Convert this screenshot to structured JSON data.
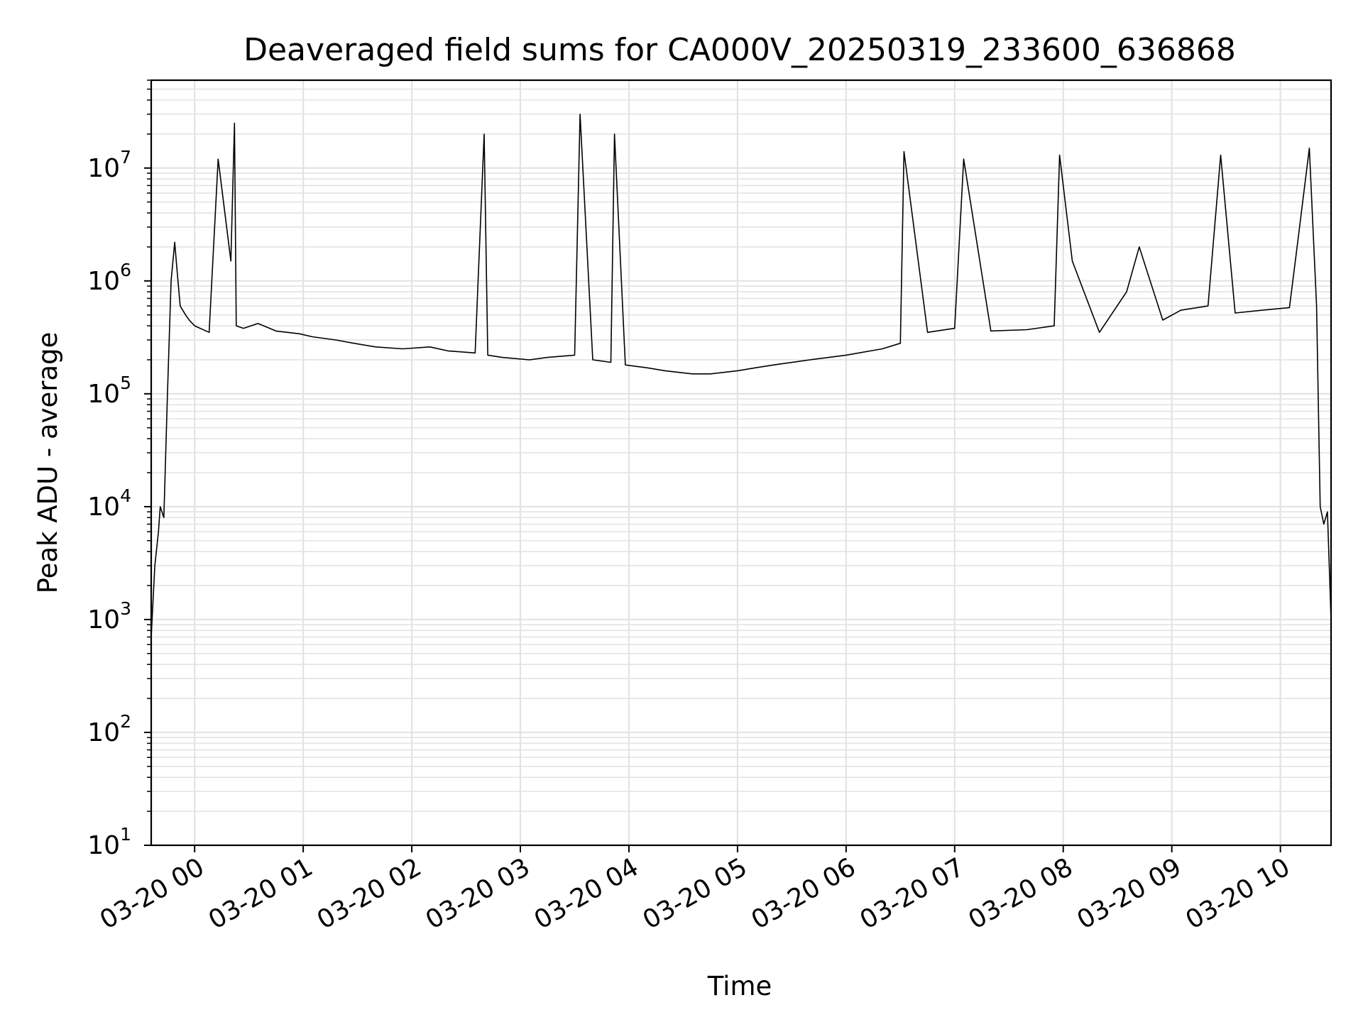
{
  "chart_data": {
    "type": "line",
    "title": "Deaveraged field sums for CA000V_20250319_233600_636868",
    "xlabel": "Time",
    "ylabel": "Peak ADU - average",
    "yscale": "log",
    "ylim": [
      10,
      60000000
    ],
    "xlim": [
      "2025-03-19 23:36",
      "2025-03-20 10:28"
    ],
    "grid": true,
    "x_tick_labels": [
      "03-20 00",
      "03-20 01",
      "03-20 02",
      "03-20 03",
      "03-20 04",
      "03-20 05",
      "03-20 06",
      "03-20 07",
      "03-20 08",
      "03-20 09",
      "03-20 10"
    ],
    "y_tick_labels": [
      {
        "base": "10",
        "exp": "1"
      },
      {
        "base": "10",
        "exp": "2"
      },
      {
        "base": "10",
        "exp": "3"
      },
      {
        "base": "10",
        "exp": "4"
      },
      {
        "base": "10",
        "exp": "5"
      },
      {
        "base": "10",
        "exp": "6"
      },
      {
        "base": "10",
        "exp": "7"
      }
    ],
    "line_color": "#000000",
    "series": [
      {
        "x": [
          "2025-03-19 23:36",
          "2025-03-19 23:38",
          "2025-03-19 23:40",
          "2025-03-19 23:41",
          "2025-03-19 23:43",
          "2025-03-19 23:45",
          "2025-03-19 23:47",
          "2025-03-19 23:49",
          "2025-03-19 23:50",
          "2025-03-19 23:52",
          "2025-03-19 23:55",
          "2025-03-19 23:57",
          "2025-03-20 00:00",
          "2025-03-20 00:08",
          "2025-03-20 00:13",
          "2025-03-20 00:20",
          "2025-03-20 00:22",
          "2025-03-20 00:23",
          "2025-03-20 00:27",
          "2025-03-20 00:35",
          "2025-03-20 00:45",
          "2025-03-20 00:58",
          "2025-03-20 01:05",
          "2025-03-20 01:18",
          "2025-03-20 01:28",
          "2025-03-20 01:40",
          "2025-03-20 01:55",
          "2025-03-20 02:10",
          "2025-03-20 02:20",
          "2025-03-20 02:35",
          "2025-03-20 02:40",
          "2025-03-20 02:42",
          "2025-03-20 02:50",
          "2025-03-20 03:05",
          "2025-03-20 03:15",
          "2025-03-20 03:30",
          "2025-03-20 03:33",
          "2025-03-20 03:40",
          "2025-03-20 03:50",
          "2025-03-20 03:52",
          "2025-03-20 03:58",
          "2025-03-20 04:10",
          "2025-03-20 04:20",
          "2025-03-20 04:35",
          "2025-03-20 04:45",
          "2025-03-20 05:00",
          "2025-03-20 05:10",
          "2025-03-20 05:20",
          "2025-03-20 05:40",
          "2025-03-20 06:00",
          "2025-03-20 06:20",
          "2025-03-20 06:30",
          "2025-03-20 06:32",
          "2025-03-20 06:45",
          "2025-03-20 07:00",
          "2025-03-20 07:05",
          "2025-03-20 07:20",
          "2025-03-20 07:40",
          "2025-03-20 07:55",
          "2025-03-20 07:58",
          "2025-03-20 08:05",
          "2025-03-20 08:20",
          "2025-03-20 08:35",
          "2025-03-20 08:42",
          "2025-03-20 08:55",
          "2025-03-20 09:05",
          "2025-03-20 09:20",
          "2025-03-20 09:27",
          "2025-03-20 09:35",
          "2025-03-20 09:50",
          "2025-03-20 10:05",
          "2025-03-20 10:10",
          "2025-03-20 10:16",
          "2025-03-20 10:20",
          "2025-03-20 10:22",
          "2025-03-20 10:24",
          "2025-03-20 10:26",
          "2025-03-20 10:28"
        ],
        "y": [
          700,
          3000,
          6000,
          10000,
          8000,
          100000,
          1000000,
          2200000,
          1400000,
          600000,
          500000,
          450000,
          400000,
          350000,
          12000000,
          1500000,
          25000000,
          400000,
          380000,
          420000,
          360000,
          340000,
          320000,
          300000,
          280000,
          260000,
          250000,
          260000,
          240000,
          230000,
          20000000,
          220000,
          210000,
          200000,
          210000,
          220000,
          30000000,
          200000,
          190000,
          20000000,
          180000,
          170000,
          160000,
          150000,
          150000,
          160000,
          170000,
          180000,
          200000,
          220000,
          250000,
          280000,
          14000000,
          350000,
          380000,
          12000000,
          360000,
          370000,
          400000,
          13000000,
          1500000,
          350000,
          800000,
          2000000,
          450000,
          550000,
          600000,
          13000000,
          520000,
          550000,
          580000,
          2500000,
          15000000,
          600000,
          10000,
          7000,
          9000,
          1000
        ]
      }
    ]
  }
}
